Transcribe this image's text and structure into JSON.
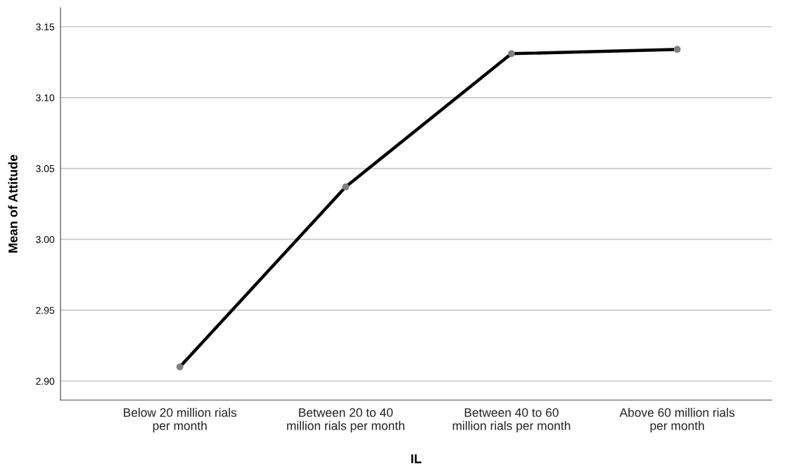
{
  "chart_data": {
    "type": "line",
    "xlabel": "IL",
    "ylabel": "Mean of Attitude",
    "categories": [
      "Below 20 million rials\nper month",
      "Between 20 to 40\nmillion rials per month",
      "Between 40 to 60\nmillion rials per month",
      "Above 60 million rials\nper month"
    ],
    "series": [
      {
        "color": "#000000",
        "colors": [
          "#808080",
          "#808080",
          "#808080",
          "#808080"
        ],
        "values": [
          2.91,
          3.037,
          3.131,
          3.134
        ]
      }
    ],
    "ylim": [
      2.8866,
      3.1634
    ],
    "yticks": [
      {
        "value": 2.9,
        "label": "2.90"
      },
      {
        "value": 2.95,
        "label": "2.95"
      },
      {
        "value": 3.0,
        "label": "3.00"
      },
      {
        "value": 3.05,
        "label": "3.05"
      },
      {
        "value": 3.1,
        "label": "3.10"
      },
      {
        "value": 3.15,
        "label": "3.15"
      }
    ],
    "grid": "y",
    "marker": "circle",
    "line_style": "solid"
  }
}
